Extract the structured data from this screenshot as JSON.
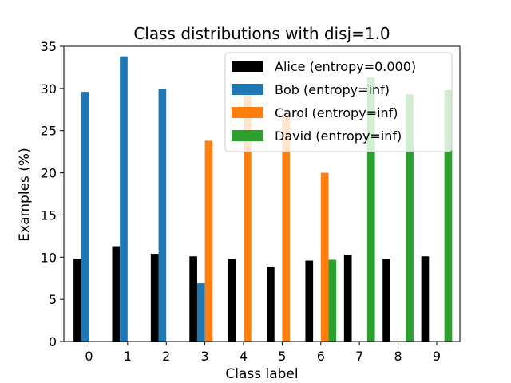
{
  "chart_data": {
    "type": "bar",
    "title": "Class distributions with disj=1.0",
    "xlabel": "Class label",
    "ylabel": "Examples (%)",
    "ylim": [
      0,
      35
    ],
    "yticks": [
      0,
      5,
      10,
      15,
      20,
      25,
      30,
      35
    ],
    "categories": [
      "0",
      "1",
      "2",
      "3",
      "4",
      "5",
      "6",
      "7",
      "8",
      "9"
    ],
    "legend_position": "top-right",
    "grid": false,
    "series": [
      {
        "name": "Alice (entropy=0.000)",
        "color": "#000000",
        "values": [
          9.8,
          11.3,
          10.4,
          10.1,
          9.8,
          8.9,
          9.6,
          10.3,
          9.8,
          10.1
        ]
      },
      {
        "name": "Bob (entropy=inf)",
        "color": "#1f77b4",
        "values": [
          29.6,
          33.8,
          29.9,
          6.9,
          0,
          0,
          0,
          0,
          0,
          0
        ]
      },
      {
        "name": "Carol (entropy=inf)",
        "color": "#ff7f0e",
        "values": [
          0,
          0,
          0,
          23.8,
          29.3,
          27.0,
          20.0,
          0,
          0,
          0
        ]
      },
      {
        "name": "David (entropy=inf)",
        "color": "#2ca02c",
        "values": [
          0,
          0,
          0,
          0,
          0,
          0,
          9.7,
          31.3,
          29.3,
          29.8
        ]
      }
    ]
  }
}
